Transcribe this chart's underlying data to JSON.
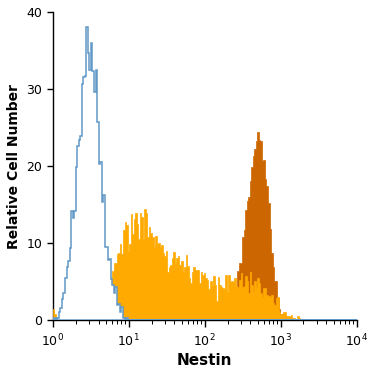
{
  "title": "",
  "xlabel": "Nestin",
  "ylabel": "Relative Cell Number",
  "xlim": [
    1,
    10000
  ],
  "ylim": [
    0,
    40
  ],
  "yticks": [
    0,
    10,
    20,
    30,
    40
  ],
  "background_color": "#ffffff",
  "isotype_color": "#6099c8",
  "untreated_color": "#ffaa00",
  "untreated_fill": "#ffaa00",
  "treated_color": "#cc6600",
  "treated_fill": "#cc6600"
}
